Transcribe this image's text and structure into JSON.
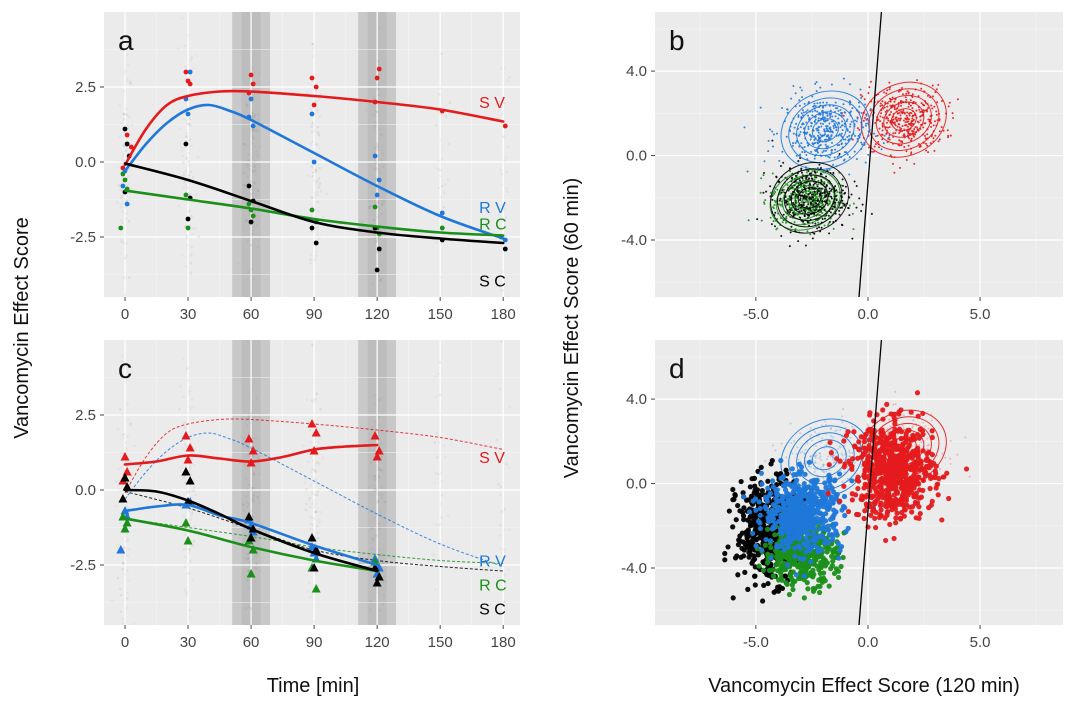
{
  "colors": {
    "S V": "#e41a1c",
    "R V": "#1f78d9",
    "R C": "#1a8f1a",
    "S C": "#000000"
  },
  "x_axis_title": "Time [min]",
  "y_axis_title": "Vancomycin Effect Score",
  "scatter_x_title": "Vancomycin Effect Score (120 min)",
  "scatter_y_title": "Vancomycin Effect Score (60 min)",
  "chart_data": [
    {
      "panel": "a",
      "type": "line",
      "x_ticks": [
        "0",
        "30",
        "60",
        "90",
        "120",
        "150",
        "180"
      ],
      "y_ticks": [
        "2.5",
        "0.0",
        "-2.5"
      ],
      "xlim": [
        -10,
        188
      ],
      "ylim": [
        -4.5,
        5.0
      ],
      "shaded_times": [
        60,
        120
      ],
      "series": [
        {
          "name": "S V",
          "x": [
            0,
            10,
            20,
            30,
            45,
            60,
            90,
            120,
            150,
            180
          ],
          "y": [
            -0.1,
            1.1,
            1.9,
            2.2,
            2.35,
            2.35,
            2.2,
            2.0,
            1.75,
            1.35
          ]
        },
        {
          "name": "R V",
          "x": [
            0,
            10,
            20,
            30,
            40,
            50,
            60,
            90,
            120,
            150,
            180
          ],
          "y": [
            -0.3,
            0.6,
            1.3,
            1.75,
            1.9,
            1.7,
            1.4,
            0.3,
            -0.8,
            -1.8,
            -2.55
          ]
        },
        {
          "name": "R C",
          "x": [
            0,
            30,
            60,
            90,
            120,
            150,
            180
          ],
          "y": [
            -0.95,
            -1.25,
            -1.55,
            -1.9,
            -2.15,
            -2.35,
            -2.45
          ]
        },
        {
          "name": "S C",
          "x": [
            0,
            30,
            60,
            90,
            120,
            150,
            180
          ],
          "y": [
            -0.05,
            -0.6,
            -1.3,
            -2.0,
            -2.35,
            -2.55,
            -2.7
          ]
        }
      ],
      "points": [
        {
          "series": "S V",
          "x": [
            1,
            3,
            -1,
            29,
            30,
            31,
            60,
            61,
            59,
            89,
            91,
            90,
            121,
            120,
            119,
            151,
            181
          ],
          "y": [
            0.9,
            0.5,
            -0.2,
            3.0,
            2.7,
            2.6,
            2.9,
            2.6,
            2.3,
            2.8,
            2.5,
            1.9,
            3.1,
            2.8,
            2.0,
            1.7,
            1.2
          ]
        },
        {
          "series": "R V",
          "x": [
            0,
            -1,
            1,
            29,
            30,
            31,
            60,
            59,
            61,
            89,
            90,
            119,
            121,
            120,
            151,
            181
          ],
          "y": [
            -0.3,
            -0.8,
            -1.4,
            2.1,
            1.6,
            3.0,
            2.1,
            1.5,
            1.2,
            1.6,
            0.0,
            0.2,
            -0.6,
            -1.1,
            -1.7,
            -2.6
          ]
        },
        {
          "series": "R C",
          "x": [
            -1,
            0,
            1,
            -2,
            29,
            30,
            59,
            60,
            61,
            89,
            91,
            119,
            120,
            121,
            151,
            179
          ],
          "y": [
            -0.4,
            -0.6,
            -0.9,
            -2.2,
            -1.1,
            -2.2,
            -1.4,
            -1.6,
            -1.8,
            -1.6,
            -2.0,
            -1.5,
            -2.2,
            -2.4,
            -2.2,
            -2.5
          ]
        },
        {
          "series": "S C",
          "x": [
            0,
            1,
            2,
            0,
            29,
            31,
            30,
            59,
            61,
            60,
            89,
            91,
            119,
            121,
            120,
            151,
            181
          ],
          "y": [
            1.1,
            0.6,
            0.2,
            -1.0,
            0.6,
            -1.2,
            -1.9,
            -0.8,
            -1.3,
            -2.0,
            -2.2,
            -2.7,
            -2.2,
            -2.9,
            -3.6,
            -2.6,
            -2.9
          ]
        }
      ],
      "labels": [
        {
          "series": "S V",
          "text": "S V",
          "x": 160,
          "y": 2.0
        },
        {
          "series": "R V",
          "text": "R V",
          "x": 160,
          "y": -1.5
        },
        {
          "series": "R C",
          "text": "R C",
          "x": 160,
          "y": -2.05
        },
        {
          "series": "S C",
          "text": "S C",
          "x": 160,
          "y": -3.95
        }
      ]
    },
    {
      "panel": "b",
      "type": "scatter",
      "x_ticks": [
        "-5.0",
        "0.0",
        "5.0"
      ],
      "y_ticks": [
        "4.0",
        "0.0",
        "-4.0"
      ],
      "xlim": [
        -9.5,
        8.7
      ],
      "ylim": [
        -6.7,
        6.8
      ],
      "reference_line": {
        "x": [
          -0.4,
          0.6
        ],
        "y": [
          -6.7,
          6.8
        ]
      },
      "clusters": [
        {
          "series": "S V",
          "center": [
            1.6,
            1.7
          ],
          "spread": [
            1.15,
            1.0
          ],
          "n": 420
        },
        {
          "series": "R V",
          "center": [
            -1.9,
            1.2
          ],
          "spread": [
            1.2,
            1.05
          ],
          "n": 420
        },
        {
          "series": "R C",
          "center": [
            -2.8,
            -2.1
          ],
          "spread": [
            0.95,
            0.8
          ],
          "n": 380
        },
        {
          "series": "S C",
          "center": [
            -2.6,
            -2.0
          ],
          "spread": [
            1.05,
            0.95
          ],
          "n": 380
        }
      ]
    },
    {
      "panel": "c",
      "type": "line",
      "x_ticks": [
        "0",
        "30",
        "60",
        "90",
        "120",
        "150",
        "180"
      ],
      "y_ticks": [
        "2.5",
        "0.0",
        "-2.5"
      ],
      "xlim": [
        -10,
        188
      ],
      "ylim": [
        -4.5,
        5.0
      ],
      "shaded_times": [
        60,
        120
      ],
      "series": [
        {
          "name": "S V",
          "x": [
            0,
            15,
            30,
            45,
            60,
            75,
            90,
            105,
            120
          ],
          "y": [
            0.85,
            0.95,
            1.15,
            1.05,
            0.95,
            1.1,
            1.35,
            1.45,
            1.5
          ]
        },
        {
          "name": "R V",
          "x": [
            0,
            15,
            30,
            45,
            60,
            90,
            120
          ],
          "y": [
            -0.7,
            -0.55,
            -0.5,
            -0.85,
            -1.1,
            -1.85,
            -2.5
          ]
        },
        {
          "name": "R C",
          "x": [
            0,
            30,
            60,
            90,
            120
          ],
          "y": [
            -0.95,
            -1.35,
            -1.9,
            -2.35,
            -2.7
          ]
        },
        {
          "name": "S C",
          "x": [
            0,
            15,
            30,
            45,
            60,
            90,
            120
          ],
          "y": [
            0.0,
            -0.05,
            -0.35,
            -0.8,
            -1.3,
            -2.1,
            -2.7
          ]
        }
      ],
      "reference_series": [
        {
          "name": "S V",
          "x": [
            0,
            10,
            20,
            30,
            45,
            60,
            90,
            120,
            150,
            180
          ],
          "y": [
            -0.1,
            1.1,
            1.9,
            2.2,
            2.35,
            2.35,
            2.2,
            2.0,
            1.75,
            1.35
          ]
        },
        {
          "name": "R V",
          "x": [
            0,
            10,
            20,
            30,
            40,
            50,
            60,
            90,
            120,
            150,
            180
          ],
          "y": [
            -0.3,
            0.6,
            1.3,
            1.75,
            1.9,
            1.7,
            1.4,
            0.3,
            -0.8,
            -1.8,
            -2.55
          ]
        },
        {
          "name": "R C",
          "x": [
            0,
            30,
            60,
            90,
            120,
            150,
            180
          ],
          "y": [
            -0.95,
            -1.25,
            -1.55,
            -1.9,
            -2.15,
            -2.35,
            -2.45
          ]
        },
        {
          "name": "S C",
          "x": [
            0,
            30,
            60,
            90,
            120,
            150,
            180
          ],
          "y": [
            -0.05,
            -0.6,
            -1.3,
            -2.0,
            -2.35,
            -2.55,
            -2.7
          ]
        }
      ],
      "points": [
        {
          "series": "S V",
          "x": [
            0,
            1,
            -1,
            29,
            31,
            30,
            59,
            61,
            60,
            89,
            91,
            90,
            119,
            121,
            120
          ],
          "y": [
            1.1,
            0.6,
            0.3,
            1.8,
            1.4,
            1.0,
            1.7,
            1.3,
            0.9,
            2.2,
            1.9,
            1.3,
            1.8,
            1.3,
            1.1
          ]
        },
        {
          "series": "R V",
          "x": [
            -2,
            0,
            1,
            29,
            31,
            59,
            60,
            61,
            89,
            90,
            91,
            119,
            121,
            120
          ],
          "y": [
            -2.0,
            -0.7,
            -0.9,
            -0.5,
            -0.4,
            -1.0,
            -1.2,
            -1.4,
            -1.9,
            -2.1,
            -2.3,
            -2.3,
            -2.6,
            -2.8
          ]
        },
        {
          "series": "R C",
          "x": [
            -1,
            1,
            0,
            29,
            30,
            59,
            61,
            60,
            89,
            91,
            119,
            121
          ],
          "y": [
            -0.9,
            -1.1,
            -1.3,
            -1.1,
            -1.7,
            -1.7,
            -2.0,
            -2.8,
            -2.6,
            -3.3,
            -2.4,
            -2.9
          ]
        },
        {
          "series": "S C",
          "x": [
            0,
            1,
            -1,
            29,
            31,
            30,
            59,
            61,
            60,
            89,
            91,
            90,
            119,
            121,
            120
          ],
          "y": [
            0.4,
            0.1,
            -0.3,
            0.6,
            0.3,
            -0.4,
            -0.9,
            -1.3,
            -1.6,
            -1.6,
            -2.0,
            -2.6,
            -2.6,
            -2.9,
            -3.1
          ]
        }
      ],
      "labels": [
        {
          "series": "S V",
          "text": "S V",
          "x": 160,
          "y": 1.1
        },
        {
          "series": "R V",
          "text": "R V",
          "x": 160,
          "y": -2.35
        },
        {
          "series": "R C",
          "text": "R C",
          "x": 160,
          "y": -3.15
        },
        {
          "series": "S C",
          "text": "S C",
          "x": 160,
          "y": -3.95
        }
      ]
    },
    {
      "panel": "d",
      "type": "scatter",
      "x_ticks": [
        "-5.0",
        "0.0",
        "5.0"
      ],
      "y_ticks": [
        "4.0",
        "0.0",
        "-4.0"
      ],
      "xlim": [
        -9.5,
        8.7
      ],
      "ylim": [
        -6.7,
        6.8
      ],
      "reference_line": {
        "x": [
          -0.4,
          0.6
        ],
        "y": [
          -6.7,
          6.8
        ]
      },
      "clusters": [
        {
          "series": "S C",
          "center": [
            -4.4,
            -2.2
          ],
          "spread": [
            0.9,
            1.5
          ],
          "n": 500
        },
        {
          "series": "R C",
          "center": [
            -3.0,
            -3.3
          ],
          "spread": [
            1.0,
            0.9
          ],
          "n": 450
        },
        {
          "series": "R V",
          "center": [
            -2.9,
            -1.4
          ],
          "spread": [
            1.1,
            1.1
          ],
          "n": 550
        },
        {
          "series": "S V",
          "center": [
            1.1,
            0.6
          ],
          "spread": [
            1.15,
            1.4
          ],
          "n": 700
        }
      ],
      "reference_clusters": [
        {
          "series": "S V",
          "center": [
            1.6,
            1.7
          ],
          "spread": [
            1.15,
            1.0
          ]
        },
        {
          "series": "R V",
          "center": [
            -1.9,
            1.2
          ],
          "spread": [
            1.2,
            1.05
          ]
        }
      ]
    }
  ]
}
